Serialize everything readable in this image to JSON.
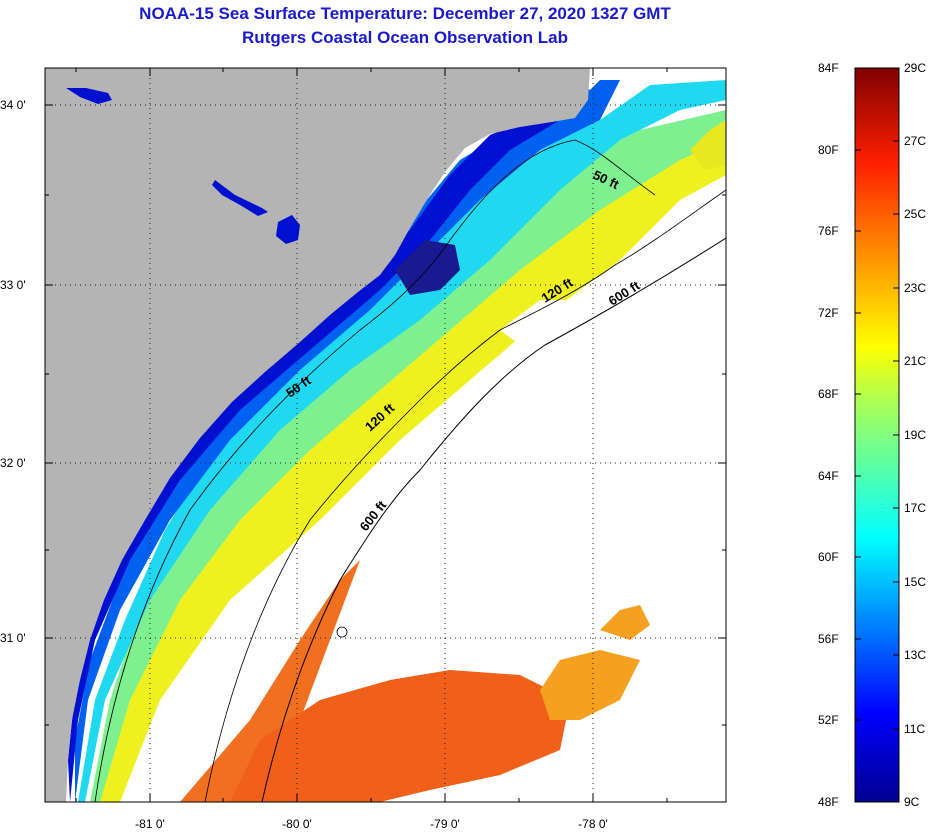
{
  "title": {
    "line1": "NOAA-15 Sea Surface Temperature:  December 27, 2020 1327 GMT",
    "line2": "Rutgers Coastal Ocean Observation Lab"
  },
  "map": {
    "lat_labels": [
      "34 0'",
      "33 0'",
      "32 0'",
      "31 0'"
    ],
    "lon_labels": [
      "-81 0'",
      "-80 0'",
      "-79 0'",
      "-78 0'"
    ],
    "isobaths": [
      "50 ft",
      "50 ft",
      "120 ft",
      "120 ft",
      "600 ft",
      "600 ft"
    ]
  },
  "colorbar": {
    "fahrenheit_labels": [
      "84F",
      "80F",
      "76F",
      "72F",
      "68F",
      "64F",
      "60F",
      "56F",
      "52F",
      "48F"
    ],
    "celsius_labels": [
      "29C",
      "27C",
      "25C",
      "23C",
      "21C",
      "19C",
      "17C",
      "15C",
      "13C",
      "11C",
      "9C"
    ],
    "range_f": [
      48,
      84
    ],
    "range_c": [
      9,
      29
    ]
  },
  "colors": {
    "title": "#1a1acc",
    "land": "#b4b4b4",
    "no_data": "#ffffff"
  }
}
